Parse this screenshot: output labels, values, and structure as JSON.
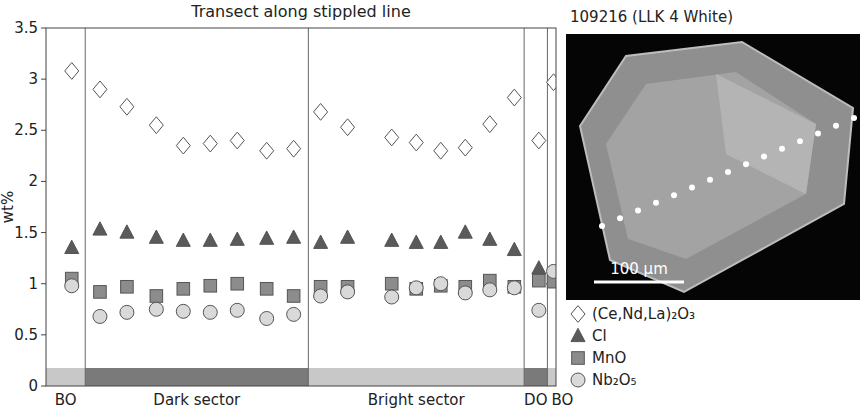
{
  "chart_data": {
    "type": "scatter",
    "title": "Transect along stippled line",
    "y_label": "wt%",
    "x": [
      1.05,
      2.2,
      3.3,
      4.5,
      5.6,
      6.7,
      7.8,
      9.0,
      10.1,
      11.2,
      12.3,
      14.1,
      15.1,
      16.1,
      17.1,
      18.1,
      19.1,
      20.1,
      20.7
    ],
    "xlim": [
      0,
      20.8
    ],
    "ylim": [
      0,
      3.5
    ],
    "yticks": [
      0,
      0.5,
      1,
      1.5,
      2,
      2.5,
      3,
      3.5
    ],
    "tick_labels": "y",
    "legend": "bottom-right",
    "series": [
      {
        "name": "(Ce,Nd,La)₂O₃",
        "color": "#ffffff",
        "marker": "diamond",
        "values": [
          3.08,
          2.9,
          2.73,
          2.55,
          2.35,
          2.37,
          2.4,
          2.3,
          2.32,
          2.68,
          2.53,
          2.43,
          2.38,
          2.3,
          2.33,
          2.56,
          2.82,
          2.4,
          2.97
        ]
      },
      {
        "name": "Cl",
        "color": "#5a5a5a",
        "marker": "triangle",
        "values": [
          1.35,
          1.53,
          1.5,
          1.45,
          1.42,
          1.42,
          1.43,
          1.44,
          1.45,
          1.4,
          1.45,
          1.42,
          1.4,
          1.4,
          1.5,
          1.43,
          1.33,
          1.15,
          1.05
        ]
      },
      {
        "name": "MnO",
        "color": "#8c8c8c",
        "marker": "square",
        "values": [
          1.05,
          0.92,
          0.97,
          0.88,
          0.95,
          0.98,
          1.0,
          0.95,
          0.88,
          0.97,
          0.97,
          1.0,
          0.95,
          0.98,
          0.97,
          1.03,
          0.97,
          1.03,
          1.02
        ]
      },
      {
        "name": "Nb₂O₅",
        "color": "#d9d9d9",
        "marker": "circle",
        "values": [
          0.98,
          0.68,
          0.72,
          0.75,
          0.73,
          0.72,
          0.74,
          0.66,
          0.7,
          0.88,
          0.92,
          0.87,
          0.96,
          1.0,
          0.91,
          0.94,
          0.96,
          0.74,
          1.12
        ]
      }
    ],
    "sectors": [
      {
        "label": "BO",
        "start": 0,
        "end": 1.6,
        "color": "#c8c8c8"
      },
      {
        "label": "Dark sector",
        "start": 1.6,
        "end": 10.7,
        "color": "#7a7a7a"
      },
      {
        "label": "Bright sector",
        "start": 10.7,
        "end": 19.5,
        "color": "#c8c8c8"
      },
      {
        "label": "DO",
        "start": 19.5,
        "end": 20.45,
        "color": "#7a7a7a"
      },
      {
        "label": "BO",
        "start": 20.45,
        "end": 20.8,
        "color": "#c8c8c8"
      }
    ]
  },
  "image": {
    "title": "109216 (LLK 4 White)",
    "scale_bar": "100 µm"
  }
}
